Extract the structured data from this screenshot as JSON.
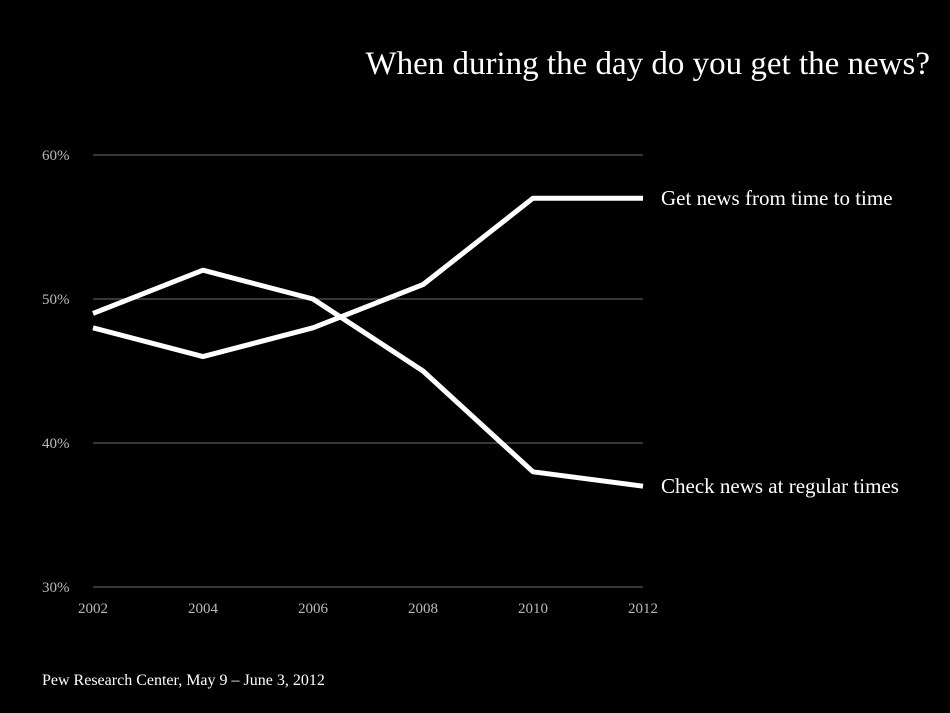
{
  "title": "When during the day do you get the news?",
  "source": "Pew Research Center, May 9 – June 3, 2012",
  "colors": {
    "background": "#000000",
    "line": "#ffffff",
    "grid": "#6e6e6e",
    "tick_text": "#b9b9b9"
  },
  "chart_data": {
    "type": "line",
    "title": "When during the day do you get the news?",
    "x": [
      "2002",
      "2004",
      "2006",
      "2008",
      "2010",
      "2012"
    ],
    "ylim": [
      30,
      60
    ],
    "yticks": [
      "30%",
      "40%",
      "50%",
      "60%"
    ],
    "grid": true,
    "legend": "inline labels at right end of lines",
    "series": [
      {
        "name": "Get news from time to time",
        "values": [
          48,
          46,
          48,
          51,
          57,
          57
        ]
      },
      {
        "name": "Check news at regular times",
        "values": [
          49,
          52,
          50,
          45,
          38,
          37
        ]
      }
    ]
  }
}
